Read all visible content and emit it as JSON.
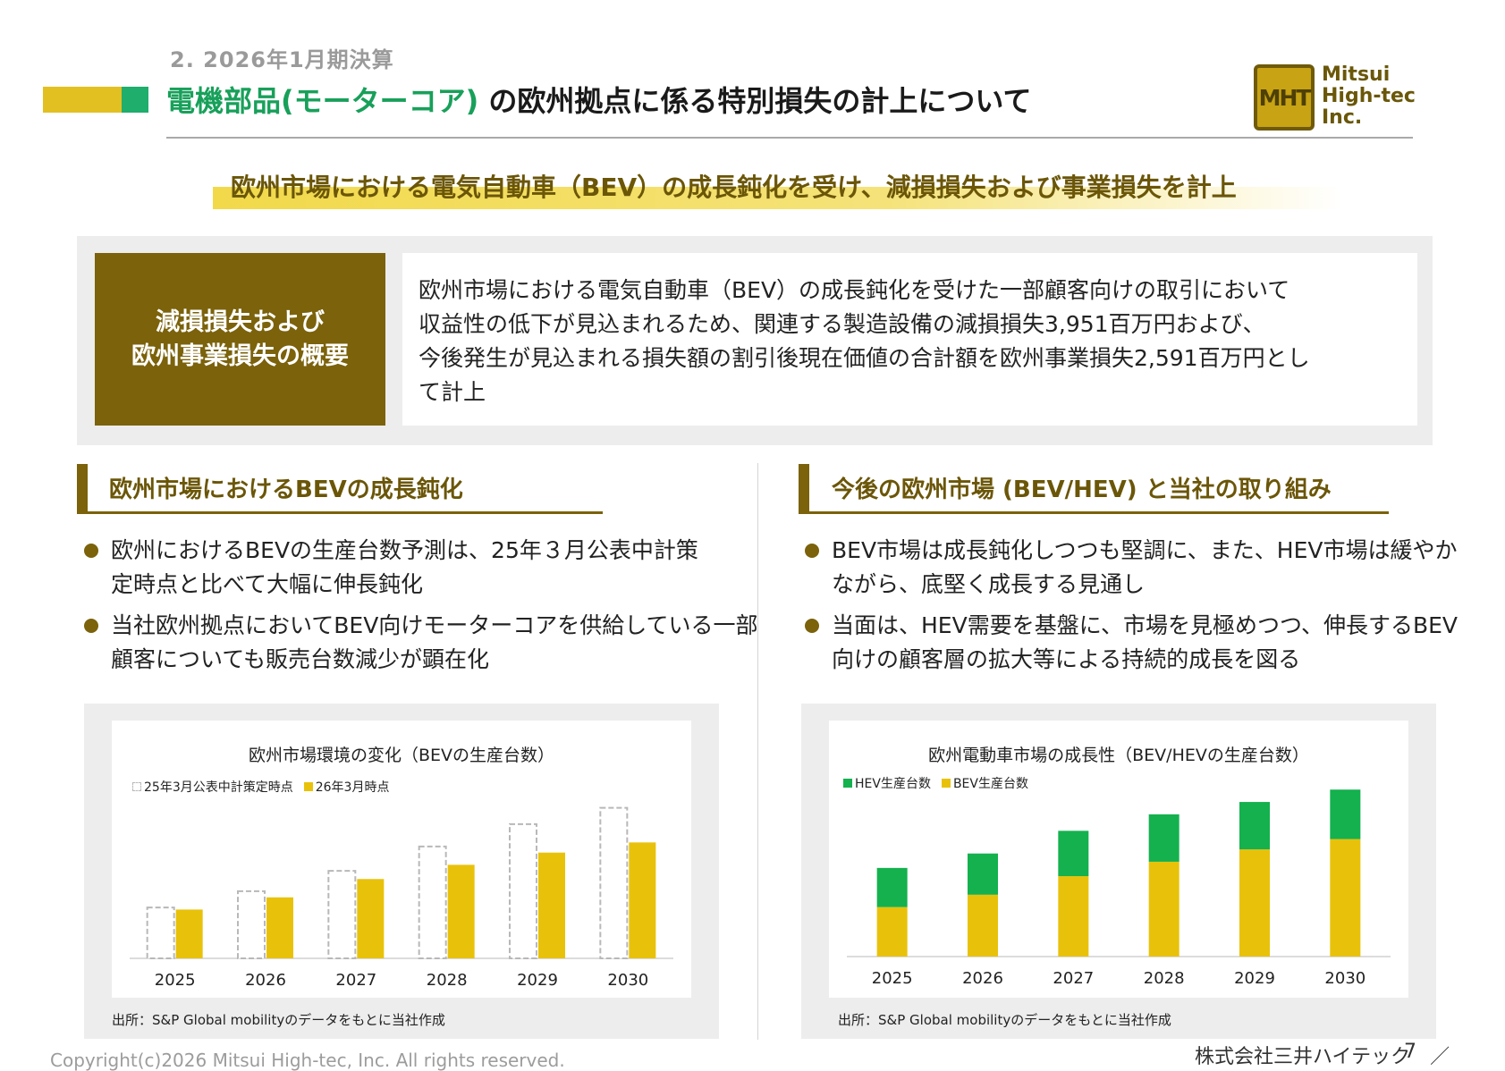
{
  "header": {
    "section_label": "2. 2026年1月期決算",
    "title_highlight": "電機部品(モーターコア)",
    "title_rest": " の欧州拠点に係る特別損失の計上について",
    "logo_mark": "MHT",
    "logo_lines": [
      "Mitsui",
      "High-tec",
      "Inc."
    ]
  },
  "headline": "欧州市場における電気自動車（BEV）の成長鈍化を受け、減損損失および事業損失を計上",
  "summary": {
    "label_lines": [
      "減損損失および",
      "欧州事業損失の概要"
    ],
    "text_lines": [
      "欧州市場における電気自動車（BEV）の成長鈍化を受けた一部顧客向けの取引において",
      "収益性の低下が見込まれるため、関連する製造設備の減損損失3,951百万円および、",
      "今後発生が見込まれる損失額の割引後現在価値の合計額を欧州事業損失2,591百万円とし",
      "て計上"
    ]
  },
  "left_section": {
    "title": "欧州市場におけるBEVの成長鈍化",
    "bullets": [
      [
        "欧州におけるBEVの生産台数予測は、25年３月公表中計策",
        "定時点と比べて大幅に伸長鈍化"
      ],
      [
        "当社欧州拠点においてBEV向けモーターコアを供給している一部",
        "顧客についても販売台数減少が顕在化"
      ]
    ]
  },
  "right_section": {
    "title": "今後の欧州市場 (BEV/HEV) と当社の取り組み",
    "bullets": [
      [
        "BEV市場は成長鈍化しつつも堅調に、また、HEV市場は緩やか",
        "ながら、底堅く成長する見通し"
      ],
      [
        "当面は、HEV需要を基盤に、市場を見極めつつ、伸長するBEV",
        "向けの顧客層の拡大等による持続的成長を図る"
      ]
    ]
  },
  "chart_data": [
    {
      "type": "bar",
      "title": "欧州市場環境の変化（BEVの生産台数）",
      "categories": [
        "2025",
        "2026",
        "2027",
        "2028",
        "2029",
        "2030"
      ],
      "series": [
        {
          "name": "25年3月公表中計策定時点",
          "values": [
            25,
            33,
            43,
            55,
            66,
            74
          ],
          "color": "#b8b8b8",
          "style": "dashed-outline"
        },
        {
          "name": "26年3月時点",
          "values": [
            24,
            30,
            39,
            46,
            52,
            57
          ],
          "color": "#e8c20a"
        }
      ],
      "ylim": [
        0,
        80
      ],
      "grid": false,
      "legend": "top-left",
      "source": "出所：S&P Global mobilityのデータをもとに当社作成"
    },
    {
      "type": "bar",
      "stacked": true,
      "title": "欧州電動車市場の成長性（BEV/HEVの生産台数）",
      "categories": [
        "2025",
        "2026",
        "2027",
        "2028",
        "2029",
        "2030"
      ],
      "series": [
        {
          "name": "HEV生産台数",
          "values": [
            19,
            20,
            22,
            23,
            23,
            24
          ],
          "color": "#14b14e"
        },
        {
          "name": "BEV生産台数",
          "values": [
            24,
            30,
            39,
            46,
            52,
            57
          ],
          "color": "#e8c20a"
        }
      ],
      "ylim": [
        0,
        85
      ],
      "grid": false,
      "legend": "top-left",
      "source": "出所：S&P Global mobilityのデータをもとに当社作成"
    }
  ],
  "footer": {
    "copyright": "Copyright(c)2026 Mitsui High-tec, Inc. All rights reserved.",
    "company": "株式会社三井ハイテック　／",
    "page": "7"
  }
}
